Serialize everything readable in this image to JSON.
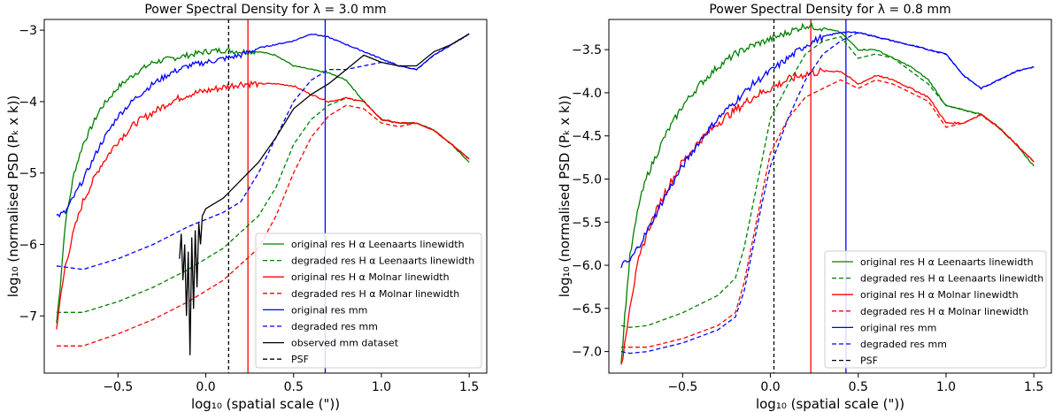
{
  "chart_data": [
    {
      "type": "line",
      "title": "Power Spectral Density for λ = 3.0 mm",
      "xlabel": "log₁₀ (spatial scale (\"))",
      "ylabel": "log₁₀ (normalised PSD (Pₖ x k))",
      "xlim": [
        -0.92,
        1.6
      ],
      "ylim": [
        -7.8,
        -2.85
      ],
      "xticks": [
        -0.5,
        0.0,
        0.5,
        1.0,
        1.5
      ],
      "xtick_labels": [
        "−0.5",
        "0.0",
        "0.5",
        "1.0",
        "1.5"
      ],
      "yticks": [
        -7,
        -6,
        -5,
        -4,
        -3
      ],
      "ytick_labels": [
        "−7",
        "−6",
        "−5",
        "−4",
        "−3"
      ],
      "vlines": [
        {
          "x": 0.13,
          "color": "#000000",
          "dash": true
        },
        {
          "x": 0.24,
          "color": "#ff0000",
          "dash": false
        },
        {
          "x": 0.68,
          "color": "#0000ff",
          "dash": false
        }
      ],
      "legend_position": "lower-right",
      "series": [
        {
          "name": "original res H α Leenaarts linewidth",
          "color": "#008000",
          "dash": false,
          "noise": 0.04,
          "x": [
            -0.85,
            -0.83,
            -0.8,
            -0.75,
            -0.7,
            -0.6,
            -0.5,
            -0.4,
            -0.3,
            -0.2,
            -0.1,
            0.0,
            0.1,
            0.2,
            0.3,
            0.4,
            0.5,
            0.6,
            0.7,
            0.8,
            0.9,
            1.0,
            1.1,
            1.2,
            1.3,
            1.4,
            1.5
          ],
          "y": [
            -7.1,
            -6.6,
            -5.7,
            -5.0,
            -4.6,
            -4.1,
            -3.8,
            -3.6,
            -3.45,
            -3.4,
            -3.35,
            -3.3,
            -3.28,
            -3.3,
            -3.3,
            -3.35,
            -3.5,
            -3.55,
            -3.6,
            -3.7,
            -4.0,
            -4.25,
            -4.3,
            -4.3,
            -4.4,
            -4.6,
            -4.85
          ]
        },
        {
          "name": "degraded res H α Leenaarts linewidth",
          "color": "#008000",
          "dash": true,
          "noise": 0,
          "x": [
            -0.85,
            -0.7,
            -0.5,
            -0.3,
            -0.1,
            0.1,
            0.3,
            0.4,
            0.5,
            0.6,
            0.7,
            0.8,
            0.9,
            1.0,
            1.1,
            1.2,
            1.3,
            1.4,
            1.5
          ],
          "y": [
            -6.95,
            -6.95,
            -6.8,
            -6.6,
            -6.35,
            -6.05,
            -5.6,
            -5.2,
            -4.6,
            -4.25,
            -4.05,
            -3.95,
            -4.0,
            -4.25,
            -4.3,
            -4.3,
            -4.4,
            -4.6,
            -4.8
          ]
        },
        {
          "name": "original res H α Molnar linewidth",
          "color": "#ff0000",
          "dash": false,
          "noise": 0.05,
          "x": [
            -0.85,
            -0.83,
            -0.8,
            -0.75,
            -0.7,
            -0.6,
            -0.5,
            -0.4,
            -0.3,
            -0.2,
            -0.1,
            0.0,
            0.1,
            0.2,
            0.3,
            0.4,
            0.5,
            0.6,
            0.7,
            0.8,
            0.9,
            1.0,
            1.1,
            1.2,
            1.3,
            1.4,
            1.5
          ],
          "y": [
            -7.15,
            -6.8,
            -6.3,
            -5.8,
            -5.4,
            -4.9,
            -4.55,
            -4.3,
            -4.15,
            -4.0,
            -3.9,
            -3.85,
            -3.8,
            -3.75,
            -3.75,
            -3.75,
            -3.78,
            -3.9,
            -4.0,
            -3.95,
            -4.0,
            -4.25,
            -4.3,
            -4.3,
            -4.4,
            -4.6,
            -4.8
          ]
        },
        {
          "name": "degraded res H α Molnar linewidth",
          "color": "#ff0000",
          "dash": true,
          "noise": 0,
          "x": [
            -0.85,
            -0.7,
            -0.5,
            -0.3,
            -0.1,
            0.1,
            0.3,
            0.4,
            0.5,
            0.6,
            0.7,
            0.8,
            0.9,
            1.0,
            1.1,
            1.2,
            1.3,
            1.4,
            1.5
          ],
          "y": [
            -7.42,
            -7.42,
            -7.25,
            -7.05,
            -6.8,
            -6.5,
            -6.05,
            -5.6,
            -5.0,
            -4.5,
            -4.2,
            -4.05,
            -4.1,
            -4.3,
            -4.35,
            -4.3,
            -4.4,
            -4.6,
            -4.8
          ]
        },
        {
          "name": "original res mm",
          "color": "#0000ff",
          "dash": false,
          "noise": 0.04,
          "x": [
            -0.85,
            -0.8,
            -0.7,
            -0.6,
            -0.5,
            -0.4,
            -0.3,
            -0.2,
            -0.1,
            0.0,
            0.1,
            0.2,
            0.3,
            0.4,
            0.5,
            0.6,
            0.7,
            0.8,
            0.9,
            1.0,
            1.1,
            1.2,
            1.3,
            1.4,
            1.5
          ],
          "y": [
            -5.6,
            -5.55,
            -5.1,
            -4.6,
            -4.2,
            -3.95,
            -3.75,
            -3.6,
            -3.5,
            -3.45,
            -3.4,
            -3.35,
            -3.25,
            -3.2,
            -3.15,
            -3.05,
            -3.1,
            -3.2,
            -3.3,
            -3.4,
            -3.5,
            -3.55,
            -3.35,
            -3.2,
            -3.05
          ]
        },
        {
          "name": "degraded res mm",
          "color": "#0000ff",
          "dash": true,
          "noise": 0,
          "x": [
            -0.85,
            -0.7,
            -0.5,
            -0.3,
            -0.1,
            0.1,
            0.2,
            0.3,
            0.4,
            0.5,
            0.6,
            0.7,
            0.8,
            0.9,
            1.0,
            1.1,
            1.2,
            1.3,
            1.4,
            1.5
          ],
          "y": [
            -6.3,
            -6.35,
            -6.2,
            -6.0,
            -5.75,
            -5.55,
            -5.4,
            -5.0,
            -4.5,
            -4.0,
            -3.7,
            -3.55,
            -3.55,
            -3.5,
            -3.45,
            -3.5,
            -3.55,
            -3.35,
            -3.2,
            -3.05
          ]
        },
        {
          "name": "observed mm dataset",
          "color": "#000000",
          "dash": false,
          "noise": 0,
          "x": [
            -0.15,
            -0.14,
            -0.13,
            -0.12,
            -0.11,
            -0.1,
            -0.09,
            -0.08,
            -0.07,
            -0.06,
            -0.05,
            -0.04,
            -0.03,
            -0.02,
            -0.01,
            0.0,
            0.1,
            0.2,
            0.3,
            0.4,
            0.5,
            0.6,
            0.7,
            0.8,
            0.9,
            1.0,
            1.1,
            1.2,
            1.3,
            1.4,
            1.5
          ],
          "y": [
            -6.2,
            -5.85,
            -6.5,
            -6.0,
            -7.0,
            -6.1,
            -7.55,
            -5.9,
            -6.9,
            -5.8,
            -6.6,
            -5.7,
            -6.0,
            -5.6,
            -5.55,
            -5.5,
            -5.35,
            -5.1,
            -4.85,
            -4.5,
            -4.1,
            -3.9,
            -3.75,
            -3.55,
            -3.35,
            -3.45,
            -3.5,
            -3.5,
            -3.3,
            -3.2,
            -3.05
          ]
        },
        {
          "name": "PSF",
          "color": "#000000",
          "dash": true,
          "noise": 0,
          "x": [],
          "y": []
        }
      ]
    },
    {
      "type": "line",
      "title": "Power Spectral Density for λ = 0.8 mm",
      "xlabel": "log₁₀ (spatial scale (\"))",
      "ylabel": "log₁₀ (normalised PSD (Pₖ x k))",
      "xlim": [
        -0.92,
        1.6
      ],
      "ylim": [
        -7.25,
        -3.15
      ],
      "xticks": [
        -0.5,
        0.0,
        0.5,
        1.0,
        1.5
      ],
      "xtick_labels": [
        "−0.5",
        "0.0",
        "0.5",
        "1.0",
        "1.5"
      ],
      "yticks": [
        -7.0,
        -6.5,
        -6.0,
        -5.5,
        -5.0,
        -4.5,
        -4.0,
        -3.5
      ],
      "ytick_labels": [
        "−7.0",
        "−6.5",
        "−6.0",
        "−5.5",
        "−5.0",
        "−4.5",
        "−4.0",
        "−3.5"
      ],
      "vlines": [
        {
          "x": 0.02,
          "color": "#000000",
          "dash": true
        },
        {
          "x": 0.23,
          "color": "#ff0000",
          "dash": false
        },
        {
          "x": 0.43,
          "color": "#0000ff",
          "dash": false
        }
      ],
      "legend_position": "lower-right",
      "series": [
        {
          "name": "original res H α Leenaarts linewidth",
          "color": "#008000",
          "dash": false,
          "noise": 0.04,
          "x": [
            -0.85,
            -0.83,
            -0.8,
            -0.75,
            -0.7,
            -0.6,
            -0.5,
            -0.4,
            -0.3,
            -0.2,
            -0.1,
            0.0,
            0.1,
            0.2,
            0.3,
            0.4,
            0.5,
            0.6,
            0.7,
            0.8,
            0.9,
            1.0,
            1.1,
            1.2,
            1.3,
            1.4,
            1.5
          ],
          "y": [
            -7.15,
            -6.6,
            -5.9,
            -5.3,
            -4.95,
            -4.5,
            -4.15,
            -3.9,
            -3.7,
            -3.55,
            -3.45,
            -3.38,
            -3.3,
            -3.22,
            -3.25,
            -3.3,
            -3.5,
            -3.5,
            -3.6,
            -3.7,
            -3.85,
            -4.15,
            -4.2,
            -4.25,
            -4.4,
            -4.6,
            -4.85
          ]
        },
        {
          "name": "degraded res H α Leenaarts linewidth",
          "color": "#008000",
          "dash": true,
          "noise": 0,
          "x": [
            -0.85,
            -0.8,
            -0.7,
            -0.5,
            -0.3,
            -0.2,
            -0.15,
            -0.1,
            -0.05,
            0.0,
            0.1,
            0.2,
            0.3,
            0.4,
            0.5,
            0.6,
            0.7,
            0.8,
            0.9,
            1.0,
            1.1,
            1.2,
            1.3,
            1.4,
            1.5
          ],
          "y": [
            -6.7,
            -6.72,
            -6.7,
            -6.55,
            -6.35,
            -6.15,
            -5.8,
            -5.3,
            -4.8,
            -4.3,
            -3.9,
            -3.55,
            -3.4,
            -3.35,
            -3.6,
            -3.55,
            -3.6,
            -3.75,
            -3.9,
            -4.15,
            -4.2,
            -4.25,
            -4.4,
            -4.6,
            -4.8
          ]
        },
        {
          "name": "original res H α Molnar linewidth",
          "color": "#ff0000",
          "dash": false,
          "noise": 0.05,
          "x": [
            -0.85,
            -0.83,
            -0.8,
            -0.75,
            -0.7,
            -0.6,
            -0.5,
            -0.4,
            -0.3,
            -0.2,
            -0.1,
            0.0,
            0.1,
            0.2,
            0.3,
            0.4,
            0.5,
            0.6,
            0.7,
            0.8,
            0.9,
            1.0,
            1.1,
            1.2,
            1.3,
            1.4,
            1.5
          ],
          "y": [
            -7.2,
            -6.9,
            -6.45,
            -5.95,
            -5.6,
            -5.15,
            -4.8,
            -4.55,
            -4.35,
            -4.2,
            -4.05,
            -3.95,
            -3.85,
            -3.78,
            -3.75,
            -3.75,
            -3.9,
            -3.8,
            -3.85,
            -3.95,
            -4.05,
            -4.35,
            -4.35,
            -4.25,
            -4.4,
            -4.6,
            -4.8
          ]
        },
        {
          "name": "degraded res H α Molnar linewidth",
          "color": "#ff0000",
          "dash": true,
          "noise": 0,
          "x": [
            -0.85,
            -0.8,
            -0.7,
            -0.5,
            -0.3,
            -0.2,
            -0.15,
            -0.1,
            -0.05,
            0.0,
            0.1,
            0.2,
            0.3,
            0.4,
            0.5,
            0.6,
            0.7,
            0.8,
            0.9,
            1.0,
            1.1,
            1.2,
            1.3,
            1.4,
            1.5
          ],
          "y": [
            -6.95,
            -6.95,
            -6.95,
            -6.85,
            -6.7,
            -6.55,
            -6.2,
            -5.7,
            -5.2,
            -4.7,
            -4.3,
            -4.05,
            -3.95,
            -3.85,
            -3.95,
            -3.85,
            -3.9,
            -4.0,
            -4.1,
            -4.4,
            -4.35,
            -4.25,
            -4.4,
            -4.6,
            -4.8
          ]
        },
        {
          "name": "original res mm",
          "color": "#0000ff",
          "dash": false,
          "noise": 0.04,
          "x": [
            -0.85,
            -0.8,
            -0.7,
            -0.6,
            -0.5,
            -0.4,
            -0.3,
            -0.2,
            -0.1,
            0.0,
            0.1,
            0.2,
            0.3,
            0.4,
            0.5,
            0.6,
            0.7,
            0.8,
            0.9,
            1.0,
            1.1,
            1.2,
            1.3,
            1.4,
            1.5
          ],
          "y": [
            -6.0,
            -5.95,
            -5.6,
            -5.2,
            -4.85,
            -4.55,
            -4.3,
            -4.1,
            -3.9,
            -3.75,
            -3.6,
            -3.45,
            -3.35,
            -3.3,
            -3.3,
            -3.35,
            -3.4,
            -3.45,
            -3.5,
            -3.55,
            -3.8,
            -3.95,
            -3.85,
            -3.75,
            -3.7
          ]
        },
        {
          "name": "degraded res mm",
          "color": "#0000ff",
          "dash": true,
          "noise": 0,
          "x": [
            -0.85,
            -0.8,
            -0.7,
            -0.5,
            -0.3,
            -0.2,
            -0.15,
            -0.1,
            -0.05,
            0.0,
            0.1,
            0.2,
            0.3,
            0.4,
            0.5,
            0.6,
            0.7,
            0.8,
            0.9,
            1.0,
            1.1,
            1.2,
            1.3,
            1.4,
            1.5
          ],
          "y": [
            -7.0,
            -7.02,
            -7.0,
            -6.9,
            -6.75,
            -6.6,
            -6.3,
            -5.8,
            -5.3,
            -4.85,
            -4.3,
            -3.85,
            -3.55,
            -3.4,
            -3.3,
            -3.35,
            -3.4,
            -3.45,
            -3.5,
            -3.55,
            -3.8,
            -3.95,
            -3.85,
            -3.75,
            -3.7
          ]
        },
        {
          "name": "PSF",
          "color": "#000000",
          "dash": true,
          "noise": 0,
          "x": [],
          "y": []
        }
      ]
    }
  ]
}
